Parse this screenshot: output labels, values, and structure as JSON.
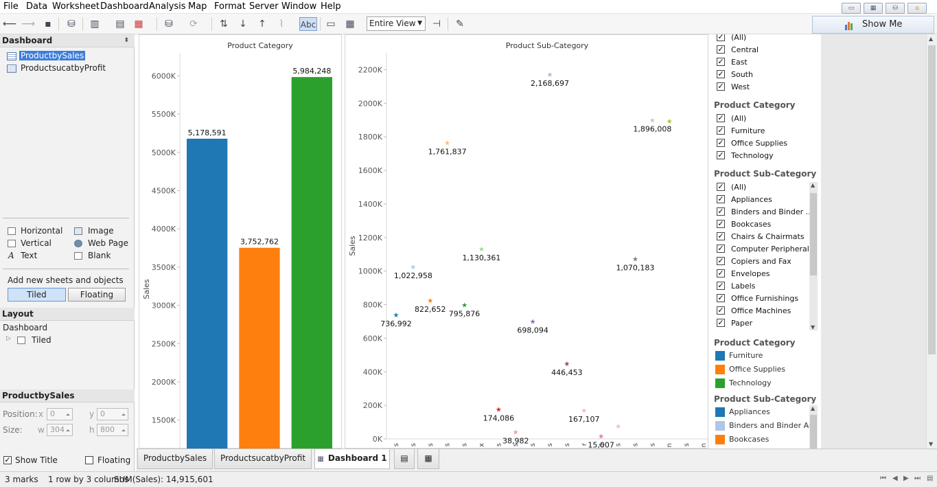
{
  "menu": [
    "File",
    "Data",
    "Worksheet",
    "Dashboard",
    "Analysis",
    "Map",
    "Format",
    "Server",
    "Window",
    "Help"
  ],
  "toolbar": {
    "view_select": "Entire View",
    "show_me": "Show Me",
    "abc_label": "Abc"
  },
  "dashboard_panel": {
    "title": "Dashboard",
    "sheets": [
      "ProductbySales",
      "ProductsucatbyProfit"
    ],
    "objects": [
      "Horizontal",
      "Image",
      "Vertical",
      "Web Page",
      "Text",
      "Blank"
    ],
    "add_label": "Add new sheets and objects as:",
    "tiled": "Tiled",
    "floating": "Floating"
  },
  "layout_panel": {
    "title": "Layout",
    "root": "Dashboard",
    "child": "Tiled"
  },
  "sheet_panel": {
    "title": "ProductbySales",
    "position_label": "Position:",
    "x_label": "x",
    "x_value": "0",
    "y_label": "y",
    "y_value": "0",
    "size_label": "Size:",
    "w_label": "w",
    "w_value": "304",
    "h_label": "h",
    "h_value": "800",
    "show_title": "Show Title",
    "floating": "Floating"
  },
  "chart_data": [
    {
      "type": "bar",
      "title": "Product Category",
      "ylabel": "Sales",
      "categories": [
        "Furniture",
        "Office Supplies",
        "Technology"
      ],
      "values": [
        5178591,
        3752762,
        5984248
      ],
      "labels": [
        "5,178,591",
        "3,752,762",
        "5,984,248"
      ],
      "colors": [
        "#1f77b4",
        "#ff7f0e",
        "#2ca02c"
      ],
      "yticks": [
        "1500K",
        "2000K",
        "2500K",
        "3000K",
        "3500K",
        "4000K",
        "4500K",
        "5000K",
        "5500K",
        "6000K"
      ],
      "yrange": [
        1120000,
        6300000
      ]
    },
    {
      "type": "scatter",
      "title": "Product Sub-Category",
      "ylabel": "Sales",
      "yticks": [
        "0K",
        "200K",
        "400K",
        "600K",
        "800K",
        "1000K",
        "1200K",
        "1400K",
        "1600K",
        "1800K",
        "2000K",
        "2200K"
      ],
      "yrange": [
        0,
        2300000
      ],
      "xticks": [
        "s",
        "s",
        "s",
        "s",
        "s",
        "x",
        "s",
        "s",
        "s",
        "s",
        "s",
        "r",
        "s",
        "s",
        "s",
        "s",
        "n",
        "s",
        "n"
      ],
      "points": [
        {
          "x": 1,
          "y": 736992,
          "label": "736,992",
          "color": "#1f77b4"
        },
        {
          "x": 2,
          "y": 1022958,
          "label": "1,022,958",
          "color": "#aec7e8"
        },
        {
          "x": 3,
          "y": 822652,
          "label": "822,652",
          "color": "#ff7f0e"
        },
        {
          "x": 4,
          "y": 1761837,
          "label": "1,761,837",
          "color": "#ffbb78"
        },
        {
          "x": 5,
          "y": 795876,
          "label": "795,876",
          "color": "#2ca02c"
        },
        {
          "x": 6,
          "y": 1130361,
          "label": "1,130,361",
          "color": "#98df8a"
        },
        {
          "x": 7,
          "y": 174086,
          "label": "174,086",
          "color": "#d62728"
        },
        {
          "x": 8,
          "y": 38982,
          "label": "38,982",
          "color": "#ff9896"
        },
        {
          "x": 9,
          "y": 698094,
          "label": "698,094",
          "color": "#9467bd"
        },
        {
          "x": 10,
          "y": 2168697,
          "label": "2,168,697",
          "color": "#c5b0d5"
        },
        {
          "x": 11,
          "y": 446453,
          "label": "446,453",
          "color": "#8c564b"
        },
        {
          "x": 12,
          "y": 167107,
          "label": "167,107",
          "color": "#f7b6d2"
        },
        {
          "x": 13,
          "y": 15007,
          "label": "15,007",
          "color": "#e377c2"
        },
        {
          "x": 14,
          "y": 74000,
          "label": "",
          "color": "#f7b6d2"
        },
        {
          "x": 15,
          "y": 1070183,
          "label": "1,070,183",
          "color": "#7f7f7f"
        },
        {
          "x": 16,
          "y": 1896008,
          "label": "1,896,008",
          "color": "#c7c7c7"
        },
        {
          "x": 17,
          "y": 1890000,
          "label": "",
          "color": "#bcbd22"
        }
      ]
    }
  ],
  "filters": {
    "region_items": [
      "(All)",
      "Central",
      "East",
      "South",
      "West"
    ],
    "category_title": "Product Category",
    "category_items": [
      "(All)",
      "Furniture",
      "Office Supplies",
      "Technology"
    ],
    "subcat_title": "Product Sub-Category",
    "subcat_items": [
      "(All)",
      "Appliances",
      "Binders and Binder ...",
      "Bookcases",
      "Chairs & Chairmats",
      "Computer Peripherals",
      "Copiers and Fax",
      "Envelopes",
      "Labels",
      "Office Furnishings",
      "Office Machines",
      "Paper"
    ]
  },
  "legends": {
    "category_title": "Product Category",
    "category_items": [
      {
        "label": "Furniture",
        "color": "#1f77b4"
      },
      {
        "label": "Office Supplies",
        "color": "#ff7f0e"
      },
      {
        "label": "Technology",
        "color": "#2ca02c"
      }
    ],
    "subcat_title": "Product Sub-Category",
    "subcat_items": [
      {
        "label": "Appliances",
        "color": "#1f77b4"
      },
      {
        "label": "Binders and Binder Ac..",
        "color": "#aec7e8"
      },
      {
        "label": "Bookcases",
        "color": "#ff7f0e"
      }
    ]
  },
  "tabs": [
    "ProductbySales",
    "ProductsucatbyProfit",
    "Dashboard 1"
  ],
  "status": {
    "marks": "3 marks",
    "layout": "1 row by 3 columns",
    "sum": "SUM(Sales): 14,915,601"
  }
}
